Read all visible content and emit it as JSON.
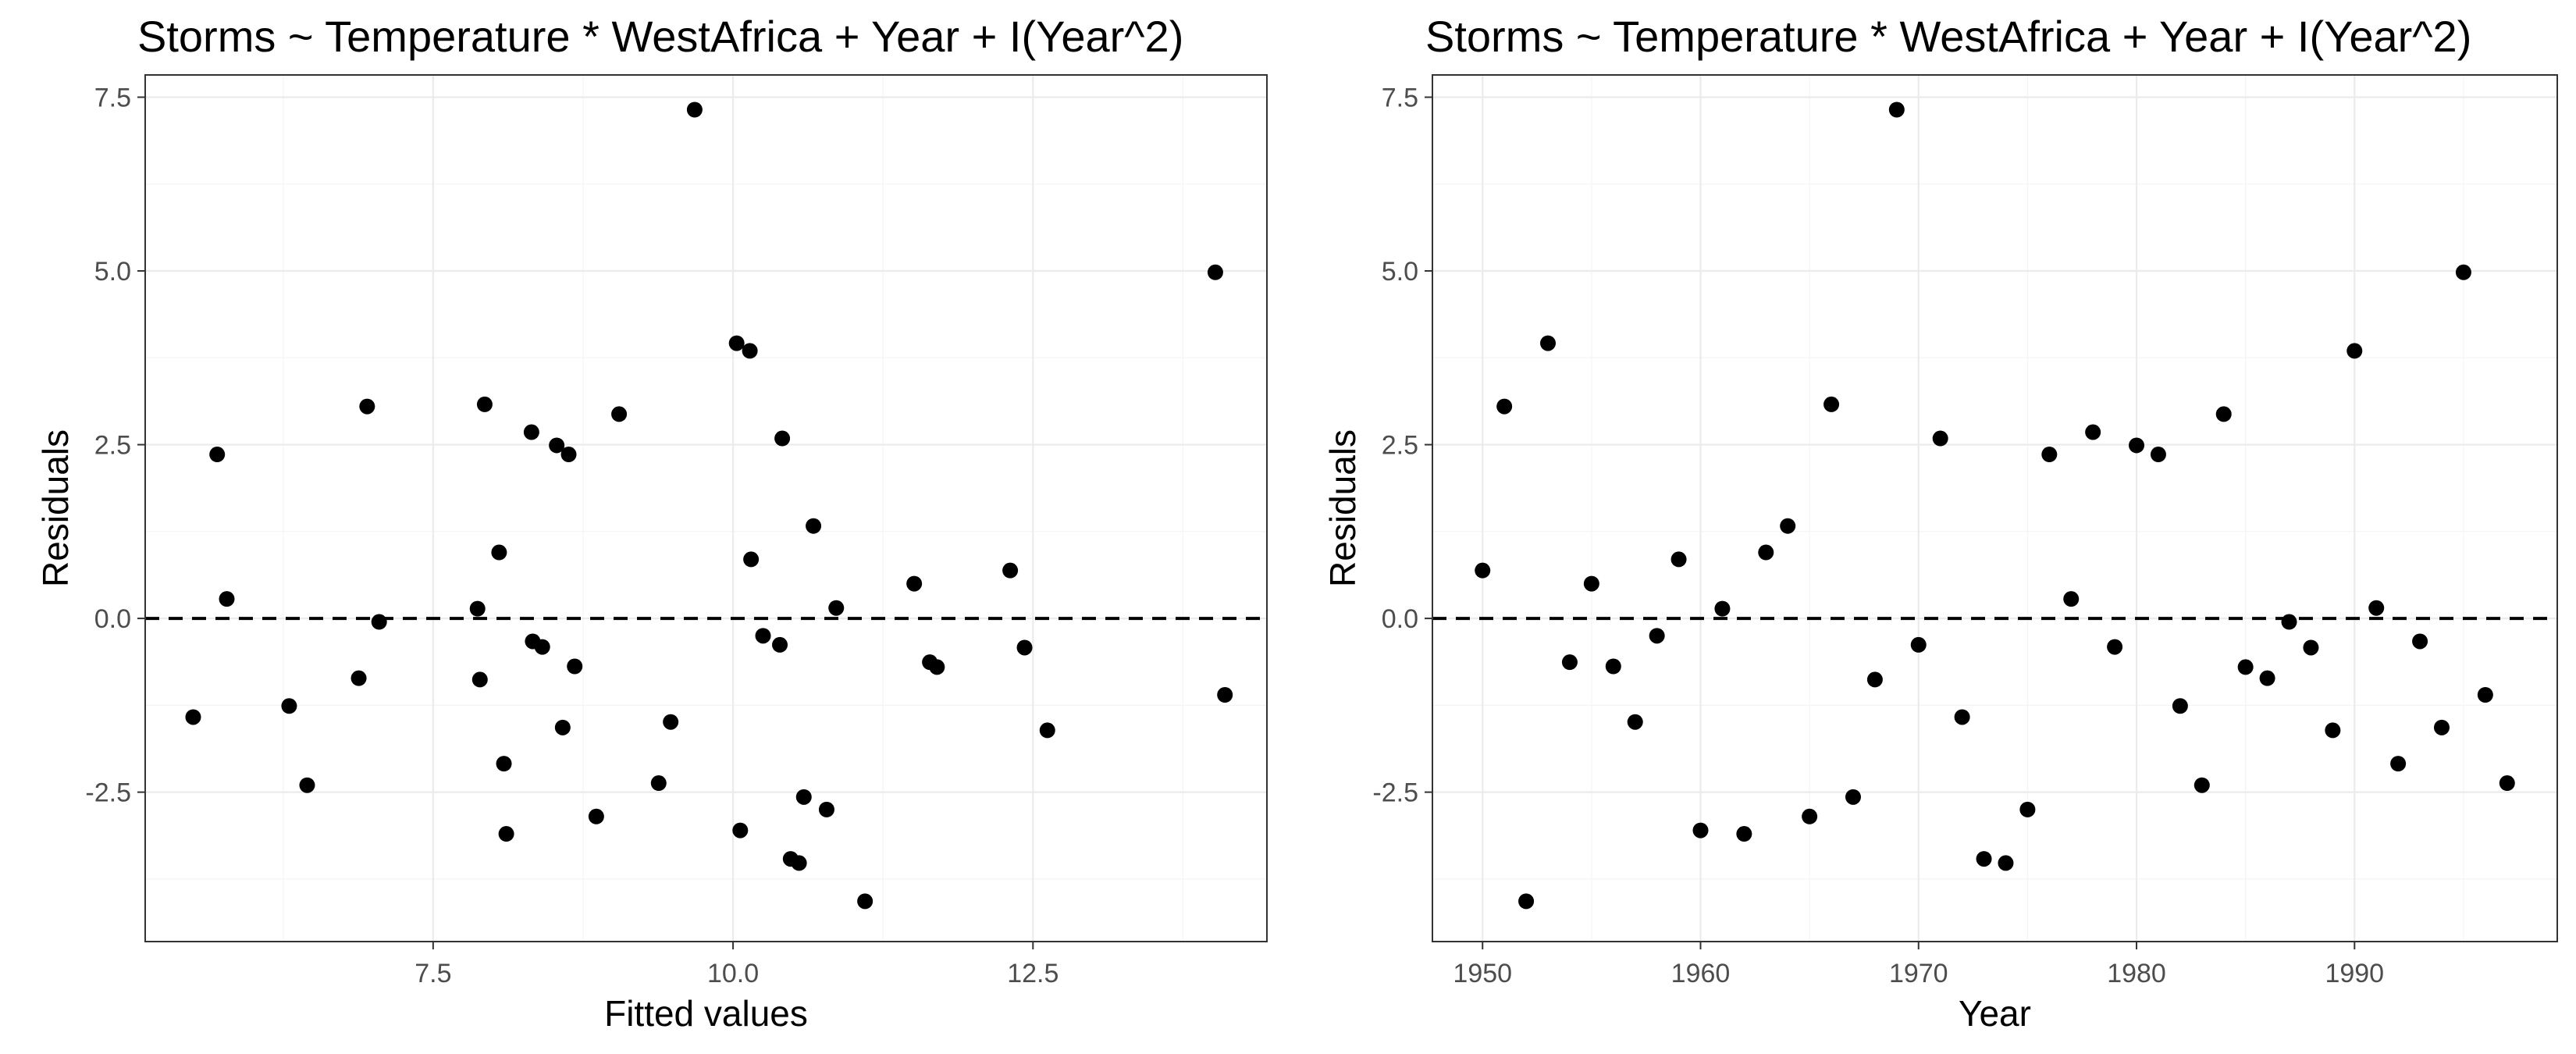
{
  "chart_data": [
    {
      "type": "scatter",
      "title": "Storms ~ Temperature * WestAfrica + Year + I(Year^2)",
      "xlabel": "Fitted values",
      "ylabel": "Residuals",
      "xlim": [
        5.1,
        14.45
      ],
      "ylim": [
        -4.65,
        7.82
      ],
      "xticks": [
        7.5,
        10.0,
        12.5
      ],
      "xtick_labels": [
        "7.5",
        "10.0",
        "12.5"
      ],
      "yticks": [
        -2.5,
        0.0,
        2.5,
        5.0,
        7.5
      ],
      "ytick_labels": [
        "-2.5",
        "0.0",
        "2.5",
        "5.0",
        "7.5"
      ],
      "hline": 0,
      "grid": true,
      "points": [
        {
          "x": 5.5,
          "y": -1.42
        },
        {
          "x": 5.7,
          "y": 2.36
        },
        {
          "x": 5.78,
          "y": 0.28
        },
        {
          "x": 6.3,
          "y": -1.26
        },
        {
          "x": 6.45,
          "y": -2.4
        },
        {
          "x": 6.88,
          "y": -0.86
        },
        {
          "x": 6.95,
          "y": 3.05
        },
        {
          "x": 7.05,
          "y": -0.05
        },
        {
          "x": 7.87,
          "y": 0.14
        },
        {
          "x": 7.89,
          "y": -0.88
        },
        {
          "x": 7.93,
          "y": 3.08
        },
        {
          "x": 8.05,
          "y": 0.95
        },
        {
          "x": 8.09,
          "y": -2.09
        },
        {
          "x": 8.11,
          "y": -3.1
        },
        {
          "x": 8.32,
          "y": 2.68
        },
        {
          "x": 8.33,
          "y": -0.33
        },
        {
          "x": 8.41,
          "y": -0.41
        },
        {
          "x": 8.53,
          "y": 2.49
        },
        {
          "x": 8.58,
          "y": -1.57
        },
        {
          "x": 8.63,
          "y": 2.36
        },
        {
          "x": 8.68,
          "y": -0.69
        },
        {
          "x": 8.86,
          "y": -2.85
        },
        {
          "x": 9.05,
          "y": 2.94
        },
        {
          "x": 9.38,
          "y": -2.37
        },
        {
          "x": 9.48,
          "y": -1.49
        },
        {
          "x": 9.68,
          "y": 7.32
        },
        {
          "x": 10.03,
          "y": 3.96
        },
        {
          "x": 10.06,
          "y": -3.05
        },
        {
          "x": 10.14,
          "y": 3.85
        },
        {
          "x": 10.15,
          "y": 0.85
        },
        {
          "x": 10.25,
          "y": -0.25
        },
        {
          "x": 10.39,
          "y": -0.38
        },
        {
          "x": 10.41,
          "y": 2.59
        },
        {
          "x": 10.48,
          "y": -3.46
        },
        {
          "x": 10.55,
          "y": -3.52
        },
        {
          "x": 10.59,
          "y": -2.57
        },
        {
          "x": 10.67,
          "y": 1.33
        },
        {
          "x": 10.78,
          "y": -2.75
        },
        {
          "x": 10.86,
          "y": 0.15
        },
        {
          "x": 11.1,
          "y": -4.07
        },
        {
          "x": 11.51,
          "y": 0.5
        },
        {
          "x": 11.64,
          "y": -0.63
        },
        {
          "x": 11.7,
          "y": -0.7
        },
        {
          "x": 12.31,
          "y": 0.69
        },
        {
          "x": 12.43,
          "y": -0.42
        },
        {
          "x": 12.62,
          "y": -1.61
        },
        {
          "x": 14.02,
          "y": 4.98
        },
        {
          "x": 14.1,
          "y": -1.1
        }
      ]
    },
    {
      "type": "scatter",
      "title": "Storms ~ Temperature * WestAfrica + Year + I(Year^2)",
      "xlabel": "Year",
      "ylabel": "Residuals",
      "xlim": [
        1947.7,
        1999.3
      ],
      "ylim": [
        -4.65,
        7.82
      ],
      "xticks": [
        1950,
        1960,
        1970,
        1980,
        1990
      ],
      "xtick_labels": [
        "1950",
        "1960",
        "1970",
        "1980",
        "1990"
      ],
      "yticks": [
        -2.5,
        0.0,
        2.5,
        5.0,
        7.5
      ],
      "ytick_labels": [
        "-2.5",
        "0.0",
        "2.5",
        "5.0",
        "7.5"
      ],
      "hline": 0,
      "grid": true,
      "points": [
        {
          "x": 1950,
          "y": 0.69
        },
        {
          "x": 1951,
          "y": 3.05
        },
        {
          "x": 1952,
          "y": -4.07
        },
        {
          "x": 1953,
          "y": 3.96
        },
        {
          "x": 1954,
          "y": -0.63
        },
        {
          "x": 1955,
          "y": 0.5
        },
        {
          "x": 1956,
          "y": -0.69
        },
        {
          "x": 1957,
          "y": -1.49
        },
        {
          "x": 1958,
          "y": -0.25
        },
        {
          "x": 1959,
          "y": 0.85
        },
        {
          "x": 1960,
          "y": -3.05
        },
        {
          "x": 1961,
          "y": 0.14
        },
        {
          "x": 1962,
          "y": -3.1
        },
        {
          "x": 1963,
          "y": 0.95
        },
        {
          "x": 1964,
          "y": 1.33
        },
        {
          "x": 1965,
          "y": -2.85
        },
        {
          "x": 1966,
          "y": 3.08
        },
        {
          "x": 1967,
          "y": -2.57
        },
        {
          "x": 1968,
          "y": -0.88
        },
        {
          "x": 1969,
          "y": 7.32
        },
        {
          "x": 1970,
          "y": -0.38
        },
        {
          "x": 1971,
          "y": 2.59
        },
        {
          "x": 1972,
          "y": -1.42
        },
        {
          "x": 1973,
          "y": -3.46
        },
        {
          "x": 1974,
          "y": -3.52
        },
        {
          "x": 1975,
          "y": -2.75
        },
        {
          "x": 1976,
          "y": 2.36
        },
        {
          "x": 1977,
          "y": 0.28
        },
        {
          "x": 1978,
          "y": 2.68
        },
        {
          "x": 1979,
          "y": -0.41
        },
        {
          "x": 1980,
          "y": 2.49
        },
        {
          "x": 1981,
          "y": 2.36
        },
        {
          "x": 1982,
          "y": -1.26
        },
        {
          "x": 1983,
          "y": -2.4
        },
        {
          "x": 1984,
          "y": 2.94
        },
        {
          "x": 1985,
          "y": -0.7
        },
        {
          "x": 1986,
          "y": -0.86
        },
        {
          "x": 1987,
          "y": -0.05
        },
        {
          "x": 1988,
          "y": -0.42
        },
        {
          "x": 1989,
          "y": -1.61
        },
        {
          "x": 1990,
          "y": 3.85
        },
        {
          "x": 1991,
          "y": 0.15
        },
        {
          "x": 1992,
          "y": -2.09
        },
        {
          "x": 1993,
          "y": -0.33
        },
        {
          "x": 1994,
          "y": -1.57
        },
        {
          "x": 1995,
          "y": 4.98
        },
        {
          "x": 1996,
          "y": -1.1
        },
        {
          "x": 1997,
          "y": -2.37
        }
      ]
    }
  ]
}
